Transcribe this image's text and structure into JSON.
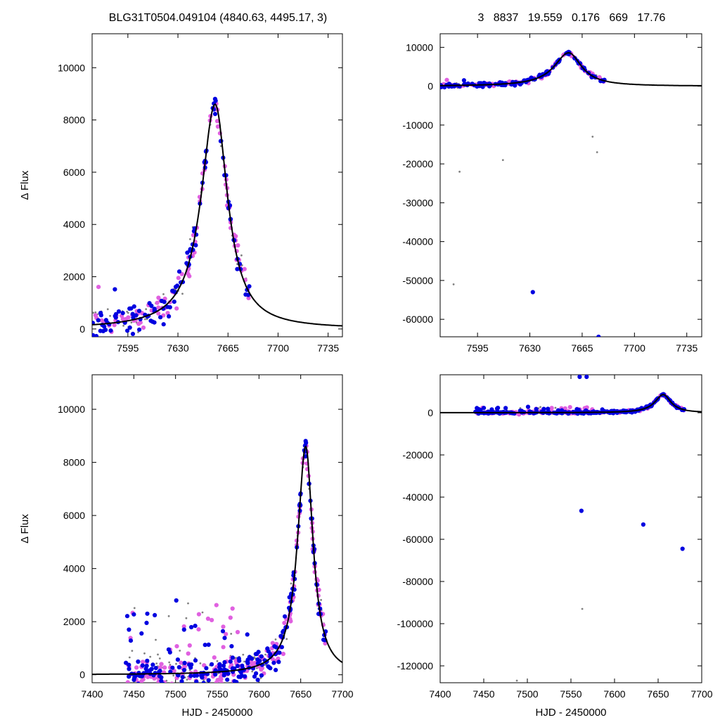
{
  "header": {
    "left_title": "BLG31T0504.049104 (4840.63, 4495.17,    3)",
    "right_title": "3   8837   19.559   0.176   669   17.76"
  },
  "colors": {
    "survey_a": "#808080",
    "survey_b": "#e060e0",
    "survey_c": "#0000e0",
    "model": "#000000"
  },
  "chart_data": [
    {
      "type": "scatter",
      "panel": "top-left",
      "xlim": [
        7570,
        7745
      ],
      "ylim": [
        -300,
        11300
      ],
      "xticks": [
        7595,
        7630,
        7665,
        7700,
        7735
      ],
      "yticks": [
        0,
        2000,
        4000,
        6000,
        8000,
        10000
      ],
      "xlabel": "",
      "ylabel": "Δ Flux",
      "model": {
        "t0": 7656,
        "peak": 8600,
        "rise_width": 15,
        "fall_width": 11,
        "fall_slow": 20
      }
    },
    {
      "type": "scatter",
      "panel": "top-right",
      "xlim": [
        7570,
        7745
      ],
      "ylim": [
        -64500,
        13500
      ],
      "xticks": [
        7595,
        7630,
        7665,
        7700,
        7735
      ],
      "yticks": [
        10000,
        0,
        -10000,
        -20000,
        -30000,
        -40000,
        -50000,
        -60000
      ],
      "xlabel": "",
      "ylabel": "",
      "outliers": [
        {
          "x": 7579,
          "y": -51000,
          "series": "gray"
        },
        {
          "x": 7632,
          "y": -53000,
          "series": "blue"
        },
        {
          "x": 7676,
          "y": -64500,
          "series": "blue"
        },
        {
          "x": 7583,
          "y": -22000,
          "series": "gray"
        },
        {
          "x": 7612,
          "y": -19000,
          "series": "gray"
        },
        {
          "x": 7672,
          "y": -13000,
          "series": "gray"
        },
        {
          "x": 7675,
          "y": -17000,
          "series": "gray"
        }
      ]
    },
    {
      "type": "scatter",
      "panel": "bottom-left",
      "xlim": [
        7400,
        7700
      ],
      "ylim": [
        -300,
        11300
      ],
      "xticks": [
        7400,
        7450,
        7500,
        7550,
        7600,
        7650,
        7700
      ],
      "yticks": [
        0,
        2000,
        4000,
        6000,
        8000,
        10000
      ],
      "xlabel": "HJD - 2450000",
      "ylabel": "Δ Flux"
    },
    {
      "type": "scatter",
      "panel": "bottom-right",
      "xlim": [
        7400,
        7700
      ],
      "ylim": [
        -128000,
        18000
      ],
      "xticks": [
        7400,
        7450,
        7500,
        7550,
        7600,
        7650,
        7700
      ],
      "yticks": [
        0,
        -20000,
        -40000,
        -60000,
        -80000,
        -100000,
        -120000
      ],
      "xlabel": "HJD - 2450000",
      "ylabel": "",
      "outliers": [
        {
          "x": 7562,
          "y": -46500,
          "series": "blue"
        },
        {
          "x": 7633,
          "y": -53000,
          "series": "blue"
        },
        {
          "x": 7678,
          "y": -64500,
          "series": "blue"
        },
        {
          "x": 7563,
          "y": -93000,
          "series": "gray"
        },
        {
          "x": 7488,
          "y": -127000,
          "series": "gray"
        },
        {
          "x": 7560,
          "y": 17000,
          "series": "blue"
        },
        {
          "x": 7568,
          "y": 17000,
          "series": "blue"
        }
      ]
    }
  ]
}
